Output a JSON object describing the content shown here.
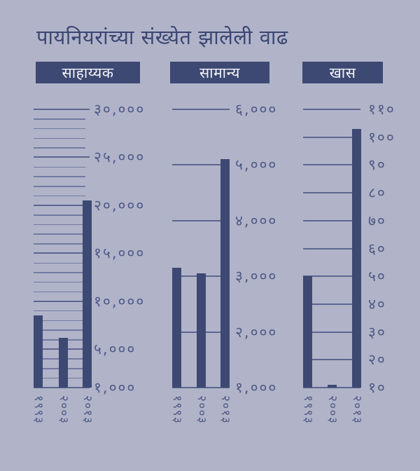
{
  "title": "पायनियरांच्या संख्येत झालेली वाढ",
  "colors": {
    "background": "#b1b4c8",
    "bar_navy": "#3d4973",
    "grid_major": "#5c6590",
    "grid_minor": "#7279a2",
    "tick_text": "#4f5886",
    "title_text": "#3b4674",
    "header_bg": "#3d4973",
    "header_text": "#f4f5f8"
  },
  "chart_data": [
    {
      "type": "bar",
      "header": "साहाय्यक",
      "categories": [
        "१९९३",
        "२००३",
        "२०१३"
      ],
      "values": [
        8500,
        6200,
        20500
      ],
      "ylim": [
        1000,
        30000
      ],
      "minor_step": 1000,
      "grid": "on",
      "legend": "none",
      "ticks": [
        {
          "value": 30000,
          "label": "३०,०००"
        },
        {
          "value": 25000,
          "label": "२५,०००"
        },
        {
          "value": 20000,
          "label": "२०,०००"
        },
        {
          "value": 15000,
          "label": "१५,०००"
        },
        {
          "value": 10000,
          "label": "१०,०००"
        },
        {
          "value": 5000,
          "label": "५,०००"
        },
        {
          "value": 1000,
          "label": "१,०००"
        }
      ]
    },
    {
      "type": "bar",
      "header": "सामान्य",
      "categories": [
        "१९९३",
        "२००३",
        "२०१३"
      ],
      "values": [
        3150,
        3050,
        5100
      ],
      "ylim": [
        1000,
        6000
      ],
      "grid": "on",
      "legend": "none",
      "ticks": [
        {
          "value": 6000,
          "label": "६,०००"
        },
        {
          "value": 5000,
          "label": "५,०००"
        },
        {
          "value": 4000,
          "label": "४,०००"
        },
        {
          "value": 3000,
          "label": "३,०००"
        },
        {
          "value": 2000,
          "label": "२,०००"
        },
        {
          "value": 1000,
          "label": "१,०००"
        }
      ]
    },
    {
      "type": "bar",
      "header": "खास",
      "categories": [
        "१९९३",
        "२००३",
        "२०१३"
      ],
      "values": [
        50,
        11,
        103
      ],
      "ylim": [
        10,
        110
      ],
      "grid": "on",
      "legend": "none",
      "ticks": [
        {
          "value": 110,
          "label": "११०"
        },
        {
          "value": 100,
          "label": "१००"
        },
        {
          "value": 90,
          "label": "९०"
        },
        {
          "value": 80,
          "label": "८०"
        },
        {
          "value": 70,
          "label": "७०"
        },
        {
          "value": 60,
          "label": "६०"
        },
        {
          "value": 50,
          "label": "५०"
        },
        {
          "value": 40,
          "label": "४०"
        },
        {
          "value": 30,
          "label": "३०"
        },
        {
          "value": 20,
          "label": "२०"
        },
        {
          "value": 10,
          "label": "१०"
        }
      ]
    }
  ]
}
